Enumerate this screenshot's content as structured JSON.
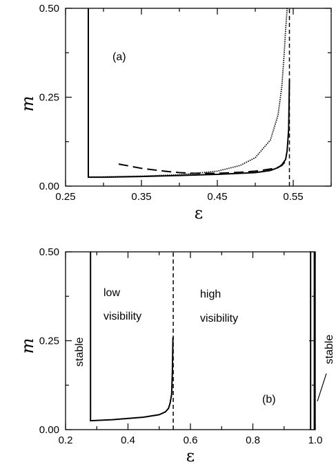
{
  "chart_data": [
    {
      "type": "line",
      "panel_label": "(a)",
      "xlabel": "ε",
      "ylabel": "m",
      "xlim": [
        0.25,
        0.6
      ],
      "ylim": [
        0,
        0.5
      ],
      "xticks": [
        0.25,
        0.35,
        0.45,
        0.55
      ],
      "xtick_labels": [
        "0.25",
        "0.35",
        "0.45",
        "0.55"
      ],
      "xticks_minor": [
        0.3,
        0.4,
        0.5,
        0.6
      ],
      "yticks": [
        0,
        0.25,
        0.5
      ],
      "ytick_labels": [
        "0.00",
        "0.25",
        "0.50"
      ],
      "yticks_minor": [
        0.125,
        0.375
      ],
      "grid": false,
      "series": [
        {
          "style": "solid",
          "x": [
            0.28,
            0.28,
            0.28,
            0.3,
            0.35,
            0.4,
            0.45,
            0.5,
            0.52,
            0.53,
            0.535,
            0.54,
            0.542,
            0.544,
            0.545
          ],
          "y": [
            0.5,
            0.1,
            0.025,
            0.025,
            0.027,
            0.03,
            0.033,
            0.038,
            0.044,
            0.052,
            0.06,
            0.075,
            0.1,
            0.16,
            0.3
          ]
        },
        {
          "style": "dotted",
          "x": [
            0.28,
            0.35,
            0.4,
            0.45,
            0.48,
            0.5,
            0.52,
            0.53,
            0.535,
            0.538,
            0.54,
            0.542
          ],
          "y": [
            0.025,
            0.028,
            0.032,
            0.042,
            0.058,
            0.08,
            0.13,
            0.2,
            0.28,
            0.37,
            0.44,
            0.5
          ]
        },
        {
          "style": "dashed",
          "x": [
            0.32,
            0.35,
            0.38,
            0.4,
            0.42,
            0.45,
            0.48,
            0.5,
            0.52,
            0.53,
            0.535,
            0.54
          ],
          "y": [
            0.062,
            0.05,
            0.042,
            0.038,
            0.036,
            0.036,
            0.039,
            0.042,
            0.048,
            0.053,
            0.058,
            0.07
          ]
        },
        {
          "style": "dashed-vertical",
          "x": [
            0.545,
            0.545
          ],
          "y": [
            0,
            0.5
          ]
        }
      ]
    },
    {
      "type": "line",
      "panel_label": "(b)",
      "xlabel": "ε",
      "ylabel": "m",
      "xlim": [
        0.2,
        1.0
      ],
      "ylim": [
        0,
        0.5
      ],
      "xticks": [
        0.2,
        0.4,
        0.6,
        0.8,
        1.0
      ],
      "xtick_labels": [
        "0.2",
        "0.4",
        "0.6",
        "0.8",
        "1.0"
      ],
      "xticks_minor": [
        0.3,
        0.5,
        0.7,
        0.9
      ],
      "yticks": [
        0,
        0.25,
        0.5
      ],
      "ytick_labels": [
        "0.00",
        "0.25",
        "0.50"
      ],
      "yticks_minor": [
        0.125,
        0.375
      ],
      "grid": false,
      "annotations": [
        "stable",
        "low",
        "visibility",
        "high",
        "visibility",
        "stable"
      ],
      "series": [
        {
          "style": "solid",
          "x": [
            0.28,
            0.28,
            0.28,
            0.35,
            0.45,
            0.5,
            0.52,
            0.53,
            0.535,
            0.54,
            0.542,
            0.544
          ],
          "y": [
            0.5,
            0.1,
            0.025,
            0.028,
            0.035,
            0.042,
            0.05,
            0.06,
            0.075,
            0.1,
            0.16,
            0.26
          ]
        },
        {
          "style": "dashed-vertical",
          "x": [
            0.545,
            0.545
          ],
          "y": [
            0,
            0.5
          ]
        },
        {
          "style": "solid",
          "x": [
            0.985,
            0.985
          ],
          "y": [
            0,
            0.5
          ]
        },
        {
          "style": "solid",
          "x": [
            0.997,
            0.997
          ],
          "y": [
            0,
            0.5
          ]
        }
      ]
    }
  ]
}
